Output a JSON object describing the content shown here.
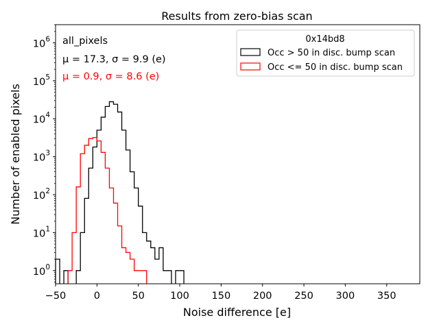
{
  "chart_data": {
    "type": "histogram",
    "title": "Results from zero-bias scan",
    "xlabel": "Noise difference [e]",
    "ylabel": "Number of enabled pixels",
    "xlim": [
      -50,
      390
    ],
    "ylim": [
      0.45,
      3000000
    ],
    "yscale": "log",
    "grid": false,
    "bin_width": 5,
    "xticks": [
      -50,
      0,
      50,
      100,
      150,
      200,
      250,
      300,
      350
    ],
    "xtick_labels": [
      "−50",
      "0",
      "50",
      "100",
      "150",
      "200",
      "250",
      "300",
      "350"
    ],
    "yticks": [
      1,
      10,
      100,
      1000,
      10000,
      100000,
      1000000
    ],
    "ytick_labels": [
      {
        "base": "10",
        "exp": "0"
      },
      {
        "base": "10",
        "exp": "1"
      },
      {
        "base": "10",
        "exp": "2"
      },
      {
        "base": "10",
        "exp": "3"
      },
      {
        "base": "10",
        "exp": "4"
      },
      {
        "base": "10",
        "exp": "5"
      },
      {
        "base": "10",
        "exp": "6"
      }
    ],
    "annotations": [
      {
        "text": "all_pixels",
        "color": "#000000"
      },
      {
        "text": "μ = 17.3, σ = 9.9 (e)",
        "color": "#000000"
      },
      {
        "text": "μ = 0.9, σ = 8.6 (e)",
        "color": "#ff0000"
      }
    ],
    "legend": {
      "title": "0x14bd8",
      "location": "top-right",
      "entries": [
        {
          "label": "Occ > 50 in disc. bump scan",
          "color": "#000000"
        },
        {
          "label": "Occ <= 50 in disc. bump scan",
          "color": "#ff0000"
        }
      ]
    },
    "series": [
      {
        "name": "Occ > 50 in disc. bump scan",
        "color": "#000000",
        "bins": [
          {
            "x0": -50,
            "v": 2
          },
          {
            "x0": -45,
            "v": 0
          },
          {
            "x0": -40,
            "v": 1
          },
          {
            "x0": -35,
            "v": 0
          },
          {
            "x0": -30,
            "v": 0
          },
          {
            "x0": -25,
            "v": 1
          },
          {
            "x0": -20,
            "v": 10
          },
          {
            "x0": -15,
            "v": 80
          },
          {
            "x0": -10,
            "v": 500
          },
          {
            "x0": -5,
            "v": 1800
          },
          {
            "x0": 0,
            "v": 5000
          },
          {
            "x0": 5,
            "v": 11000
          },
          {
            "x0": 10,
            "v": 21000
          },
          {
            "x0": 15,
            "v": 28000
          },
          {
            "x0": 20,
            "v": 24000
          },
          {
            "x0": 25,
            "v": 15000
          },
          {
            "x0": 30,
            "v": 5000
          },
          {
            "x0": 35,
            "v": 1500
          },
          {
            "x0": 40,
            "v": 400
          },
          {
            "x0": 45,
            "v": 150
          },
          {
            "x0": 50,
            "v": 50
          },
          {
            "x0": 55,
            "v": 10
          },
          {
            "x0": 60,
            "v": 6
          },
          {
            "x0": 65,
            "v": 4
          },
          {
            "x0": 70,
            "v": 2
          },
          {
            "x0": 75,
            "v": 4
          },
          {
            "x0": 80,
            "v": 1
          },
          {
            "x0": 85,
            "v": 1
          },
          {
            "x0": 90,
            "v": 0
          },
          {
            "x0": 95,
            "v": 1
          },
          {
            "x0": 100,
            "v": 1
          }
        ]
      },
      {
        "name": "Occ <= 50 in disc. bump scan",
        "color": "#ff0000",
        "bins": [
          {
            "x0": -35,
            "v": 1
          },
          {
            "x0": -30,
            "v": 10
          },
          {
            "x0": -25,
            "v": 160
          },
          {
            "x0": -20,
            "v": 1200
          },
          {
            "x0": -15,
            "v": 2000
          },
          {
            "x0": -10,
            "v": 3000
          },
          {
            "x0": -5,
            "v": 3200
          },
          {
            "x0": 0,
            "v": 2600
          },
          {
            "x0": 5,
            "v": 1300
          },
          {
            "x0": 10,
            "v": 500
          },
          {
            "x0": 15,
            "v": 150
          },
          {
            "x0": 20,
            "v": 60
          },
          {
            "x0": 25,
            "v": 15
          },
          {
            "x0": 30,
            "v": 4
          },
          {
            "x0": 35,
            "v": 3
          },
          {
            "x0": 40,
            "v": 2
          },
          {
            "x0": 45,
            "v": 1
          },
          {
            "x0": 50,
            "v": 1
          },
          {
            "x0": 55,
            "v": 1
          }
        ]
      }
    ]
  }
}
